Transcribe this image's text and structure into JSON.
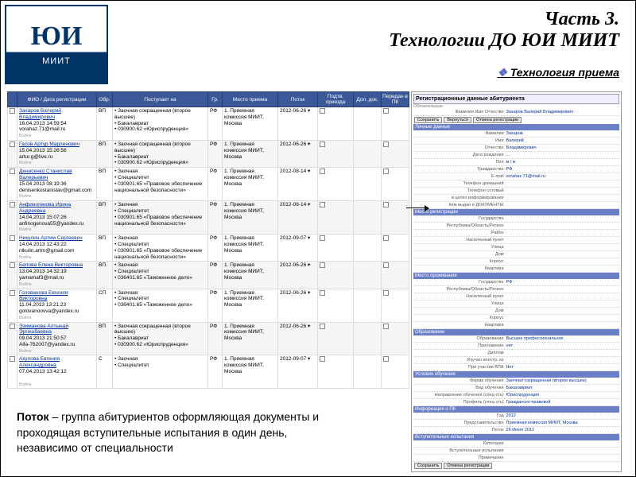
{
  "header": {
    "logo_top": "ЮИ",
    "logo_bottom": "МИИТ",
    "title": "Часть 3.",
    "subtitle": "Технологии ДО  ЮИ  МИИТ",
    "section": "Технология приема"
  },
  "table": {
    "headers": [
      "",
      "ФИО / Дата регистрации",
      "Обр.",
      "Поступает на",
      "Гр.",
      "Место приема",
      "Поток",
      "Подтв. приезда",
      "Доп. док.",
      "Передан в ПК"
    ],
    "rows": [
      {
        "name": "Захаров Валерий Владимирович",
        "dt": "16.04.2013 14:59:54",
        "em": "vorahaz.71@mail.ru",
        "obr": "ВП",
        "post": "• Заочная сокращенная (второе высшее)\n• Бакалавриат\n• 030900.62 «Юриспруденция»",
        "gr": "РФ",
        "place": "1. Приемная комиссия МИИТ, Москва",
        "potok": "2012-06-26"
      },
      {
        "name": "Гасов Артур Марленович",
        "dt": "15.04.2013 15:26:56",
        "em": "artur.g@live.ru",
        "obr": "ВП",
        "post": "• Заочная сокращенная (второе высшее)\n• Бакалавриат\n• 030900.62 «Юриспруденция»",
        "gr": "РФ",
        "place": "1. Приемная комиссия МИИТ, Москва",
        "potok": "2012-06-26"
      },
      {
        "name": "Денисенко Станислав Валерьевич",
        "dt": "15.04.2013 08:19:36",
        "em": "denisenkostanislav@gmail.com",
        "obr": "ВП",
        "post": "• Заочная\n• Специалитет\n• 030901.65 «Правовое обеспечение национальной безопасности»",
        "gr": "РФ",
        "place": "1. Приемная комиссия МИИТ, Москва",
        "potok": "2012-08-14"
      },
      {
        "name": "Анфиногенова Ирина Андреевна",
        "dt": "14.04.2013 15:07:26",
        "em": "anfinogenova55@yandex.ru",
        "obr": "ВП",
        "post": "• Заочная\n• Специалитет\n• 030901.65 «Правовое обеспечение национальной безопасности»",
        "gr": "РФ",
        "place": "1. Приемная комиссия МИИТ, Москва",
        "potok": "2012-08-14"
      },
      {
        "name": "Никулин Артем Сергеевич",
        "dt": "14.04.2013 12:43:22",
        "em": "nikulin.artm@gmail.com",
        "obr": "ВП",
        "post": "• Заочная\n• Специалитет\n• 030901.65 «Правовое обеспечение национальной безопасности»",
        "gr": "РФ",
        "place": "1. Приемная комиссия МИИТ, Москва",
        "potok": "2012-09-07"
      },
      {
        "name": "Белова Елена Викторовна",
        "dt": "13.04.2013 14:32:19",
        "em": "yamamaf3@mail.ru",
        "obr": "ВП",
        "post": "• Заочная\n• Специалитет\n• 036401.65 «Таможенное дело»",
        "gr": "РФ",
        "place": "1. Приемная комиссия МИИТ, Москва",
        "potok": "2012-06-26"
      },
      {
        "name": "Голованова Евгения Викторовна",
        "dt": "11.04.2013 13:21:23",
        "em": "golovanoovva@yandex.ru",
        "obr": "СП",
        "post": "• Заочная\n• Специалитет\n• 036401.65 «Таможенное дело»",
        "gr": "РФ",
        "place": "1. Приемная комиссия МИИТ, Москва",
        "potok": "2012-06-26"
      },
      {
        "name": "Эзиманова Алтынай Эргешбаевна",
        "dt": "09.04.2013 21:50:57",
        "em": "Alfa-762007@yandex.ru",
        "obr": "ВП",
        "post": "• Заочная сокращенная (второе высшее)\n• Бакалавриат\n• 030900.62 «Юриспруденция»",
        "gr": "РФ",
        "place": "1. Приемная комиссия МИИТ, Москва",
        "potok": "2012-06-26"
      },
      {
        "name": "Акулова Евгения Александровна",
        "dt": "07.04.2013 13:42:12",
        "em": "",
        "obr": "С",
        "post": "• Заочная\n• Специалитет",
        "gr": "РФ",
        "place": "1. Приемная комиссия МИИТ, Москва",
        "potok": "2012-09-07"
      }
    ]
  },
  "right_panel": {
    "title": "Регистрационные данные абитуриента",
    "sub": "Обязательные",
    "name_row_label": "Фамилия Имя Отчество",
    "name_row_val": "Захаров Валерий Владимирович",
    "buttons": [
      "Сохранить",
      "Вернуться",
      "Отмена регистрации"
    ],
    "sections": [
      {
        "h": "Личные данные",
        "rows": [
          [
            "Фамилия",
            "Захаров"
          ],
          [
            "Имя",
            "Валерий"
          ],
          [
            "Отчество",
            "Владимирович"
          ],
          [
            "Дата рождения",
            "..."
          ],
          [
            "Пол",
            "м / ж"
          ],
          [
            "Гражданство",
            "РФ"
          ],
          [
            "E-mail",
            "vorahaz.71@mail.ru"
          ],
          [
            "Телефон домашний",
            ""
          ],
          [
            "Телефон сотовый",
            ""
          ],
          [
            "в целях информирования",
            ""
          ]
        ]
      },
      {
        "h": "",
        "rows": [
          [
            "Кем выдан и ДОКУМЕНТЫ",
            ""
          ]
        ]
      },
      {
        "h": "Место регистрации",
        "rows": [
          [
            "Государство",
            ""
          ],
          [
            "Республика/Область/Регион",
            ""
          ],
          [
            "Район",
            ""
          ],
          [
            "Населенный пункт",
            ""
          ],
          [
            "Улица",
            ""
          ],
          [
            "Дом",
            ""
          ],
          [
            "Корпус",
            ""
          ],
          [
            "Квартира",
            ""
          ]
        ]
      },
      {
        "h": "Место проживания",
        "rows": [
          [
            "Государство",
            "РФ"
          ],
          [
            "Республика/Область/Регион",
            ""
          ],
          [
            "Населенный пункт",
            ""
          ],
          [
            "Улица",
            ""
          ],
          [
            "Дом",
            ""
          ],
          [
            "Корпус",
            ""
          ],
          [
            "Квартира",
            ""
          ]
        ]
      },
      {
        "h": "Образование",
        "rows": [
          [
            "Образование",
            "Высшее профессиональное"
          ],
          [
            "Приложение",
            "нет"
          ],
          [
            "Диплом",
            ""
          ],
          [
            "Изучал иностр. яз",
            ""
          ],
          [
            "При участии ВПА",
            "Нет"
          ]
        ]
      },
      {
        "h": "Условия обучения",
        "rows": [
          [
            "Форма обучения",
            "Заочная сокращенная (второе высшее)"
          ],
          [
            "Вид обучения",
            "Бакалавриат"
          ],
          [
            "Направление обучения (спец-сть)",
            "Юриспруденция"
          ],
          [
            "Профиль (спец-сть)",
            "Гражданско-правовой"
          ]
        ]
      },
      {
        "h": "Информация о ПК",
        "rows": [
          [
            "Год",
            "2012"
          ],
          [
            "Представительство",
            "Приемная комиссия МИИТ, Москва"
          ],
          [
            "Поток",
            "26 Июня 2012"
          ]
        ]
      },
      {
        "h": "Вступительные испытания",
        "rows": [
          [
            "Категория",
            ""
          ],
          [
            "Вступительные испытания",
            ""
          ],
          [
            "Примечание",
            ""
          ]
        ]
      }
    ],
    "bottom_buttons": [
      "Сохранить",
      "Отмена регистрации"
    ]
  },
  "footer": {
    "text_bold": "Поток",
    "text_rest": " – группа абитуриентов оформляющая документы и проходящая  вступительные испытания в один день, независимо от специальности"
  }
}
